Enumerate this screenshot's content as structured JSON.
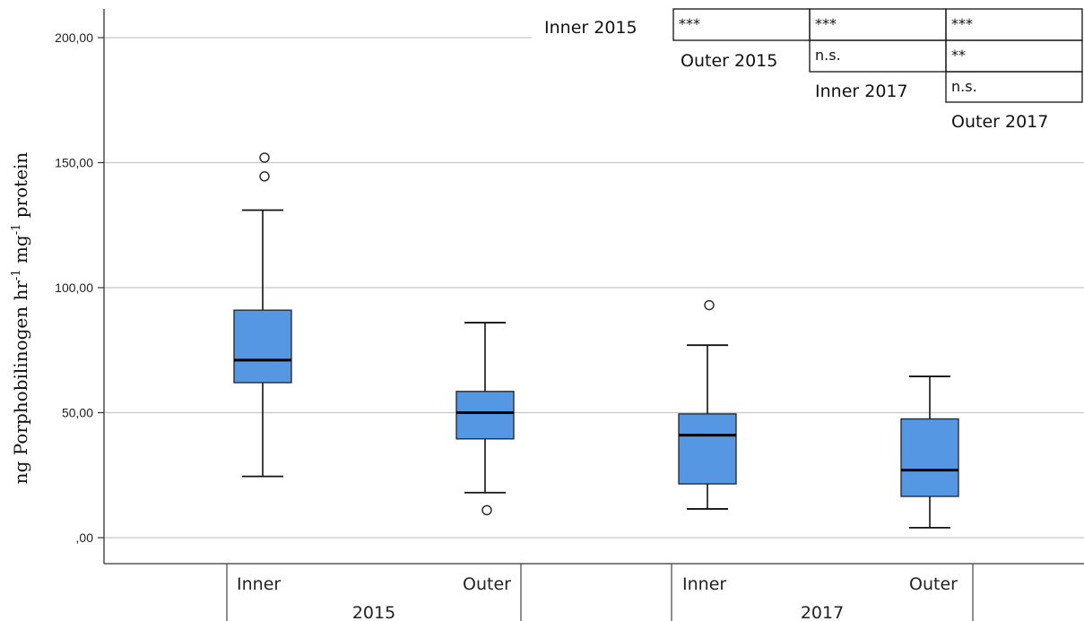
{
  "chart_data": {
    "type": "box",
    "ylabel": "ng Porphobilinogen hr",
    "ylabel_sup1": "-1",
    "ylabel_mid": " mg",
    "ylabel_sup2": "-1",
    "ylabel_end": " protein",
    "ylim": [
      -10,
      210
    ],
    "yticks": [
      0,
      50,
      100,
      150,
      200
    ],
    "ytick_labels": [
      ",00",
      "50,00",
      "100,00",
      "150,00",
      "200,00"
    ],
    "grid": true,
    "groups": [
      {
        "label": "2015",
        "categories": [
          "Inner",
          "Outer"
        ]
      },
      {
        "label": "2017",
        "categories": [
          "Inner",
          "Outer"
        ]
      }
    ],
    "boxes": [
      {
        "group": "2015",
        "category": "Inner",
        "whisker_low": 24.5,
        "q1": 62,
        "median": 71,
        "q3": 91,
        "whisker_high": 131,
        "outliers": [
          144.5,
          152
        ]
      },
      {
        "group": "2015",
        "category": "Outer",
        "whisker_low": 18,
        "q1": 39.5,
        "median": 50,
        "q3": 58.5,
        "whisker_high": 86,
        "outliers": [
          11
        ]
      },
      {
        "group": "2017",
        "category": "Inner",
        "whisker_low": 11.5,
        "q1": 21.5,
        "median": 41,
        "q3": 49.5,
        "whisker_high": 77,
        "outliers": [
          93
        ]
      },
      {
        "group": "2017",
        "category": "Outer",
        "whisker_low": 4,
        "q1": 16.5,
        "median": 27,
        "q3": 47.5,
        "whisker_high": 64.5,
        "outliers": []
      }
    ],
    "box_color": "#5597e3",
    "significance_table": {
      "row_labels": [
        "Inner 2015",
        "Outer 2015",
        "Inner 2017",
        "Outer 2017"
      ],
      "rows": [
        [
          "***",
          "***",
          "***"
        ],
        [
          "n.s.",
          "**"
        ],
        [
          "n.s."
        ]
      ]
    }
  }
}
